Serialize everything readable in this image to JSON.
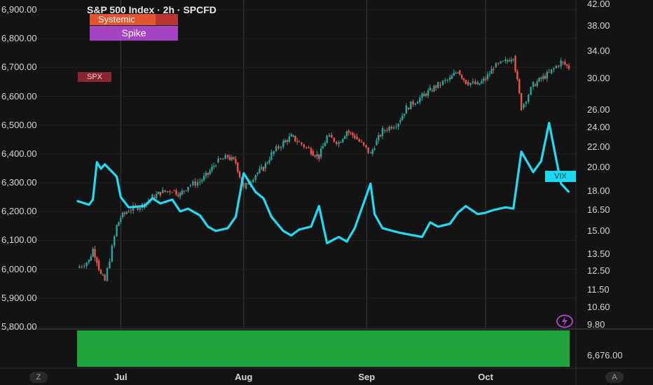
{
  "chart_data": {
    "title": "S&P 500 Index · 2h · SPCFD",
    "type": "candlestick+line",
    "x_ticks": [
      "Jul",
      "Aug",
      "Sep",
      "Oct"
    ],
    "left_axis": {
      "ticks": [
        "6,900.00",
        "6,800.00",
        "6,700.00",
        "6,600.00",
        "6,500.00",
        "6,400.00",
        "6,300.00",
        "6,200.00",
        "6,100.00",
        "6,000.00",
        "5,900.00",
        "5,800.00"
      ],
      "range": [
        5800,
        6900
      ]
    },
    "right_axis": {
      "ticks": [
        "42.00",
        "38.00",
        "34.00",
        "30.00",
        "26.00",
        "24.00",
        "22.00",
        "20.00",
        "18.00",
        "16.50",
        "15.00",
        "13.50",
        "12.50",
        "11.50",
        "10.60",
        "9.80"
      ],
      "scale": "log"
    },
    "legend": [
      "Systemic",
      "Spike"
    ],
    "series": [
      {
        "name": "SPX",
        "axis": "left",
        "color_up": "#26a69a",
        "color_down": "#ef5350",
        "points": [
          [
            "Jun 20",
            6005
          ],
          [
            "Jun 23",
            6030
          ],
          [
            "Jun 24",
            6070
          ],
          [
            "Jun 25",
            6030
          ],
          [
            "Jun 26",
            5980
          ],
          [
            "Jun 27",
            5960
          ],
          [
            "Jun 30",
            6150
          ],
          [
            "Jul 1",
            6180
          ],
          [
            "Jul 3",
            6205
          ],
          [
            "Jul 7",
            6225
          ],
          [
            "Jul 9",
            6250
          ],
          [
            "Jul 11",
            6265
          ],
          [
            "Jul 14",
            6275
          ],
          [
            "Jul 16",
            6260
          ],
          [
            "Jul 18",
            6290
          ],
          [
            "Jul 21",
            6305
          ],
          [
            "Jul 23",
            6330
          ],
          [
            "Jul 25",
            6370
          ],
          [
            "Jul 28",
            6390
          ],
          [
            "Jul 30",
            6370
          ],
          [
            "Aug 1",
            6280
          ],
          [
            "Aug 4",
            6330
          ],
          [
            "Aug 6",
            6350
          ],
          [
            "Aug 8",
            6400
          ],
          [
            "Aug 11",
            6440
          ],
          [
            "Aug 13",
            6460
          ],
          [
            "Aug 15",
            6440
          ],
          [
            "Aug 18",
            6410
          ],
          [
            "Aug 20",
            6390
          ],
          [
            "Aug 22",
            6460
          ],
          [
            "Aug 25",
            6440
          ],
          [
            "Aug 27",
            6480
          ],
          [
            "Aug 29",
            6460
          ],
          [
            "Sep 2",
            6400
          ],
          [
            "Sep 3",
            6430
          ],
          [
            "Sep 5",
            6480
          ],
          [
            "Sep 9",
            6510
          ],
          [
            "Sep 11",
            6560
          ],
          [
            "Sep 15",
            6600
          ],
          [
            "Sep 17",
            6620
          ],
          [
            "Sep 19",
            6640
          ],
          [
            "Sep 22",
            6660
          ],
          [
            "Sep 24",
            6690
          ],
          [
            "Sep 26",
            6650
          ],
          [
            "Sep 29",
            6640
          ],
          [
            "Oct 1",
            6660
          ],
          [
            "Oct 3",
            6700
          ],
          [
            "Oct 6",
            6720
          ],
          [
            "Oct 8",
            6740
          ],
          [
            "Oct 10",
            6560
          ],
          [
            "Oct 13",
            6640
          ],
          [
            "Oct 15",
            6660
          ],
          [
            "Oct 17",
            6680
          ],
          [
            "Oct 20",
            6720
          ],
          [
            "Oct 22",
            6700
          ]
        ]
      },
      {
        "name": "VIX",
        "axis": "right",
        "color": "#1fdcf5",
        "points": [
          [
            "Jun 20",
            17.2
          ],
          [
            "Jun 23",
            16.9
          ],
          [
            "Jun 24",
            17.3
          ],
          [
            "Jun 25",
            20.5
          ],
          [
            "Jun 26",
            19.9
          ],
          [
            "Jun 27",
            20.3
          ],
          [
            "Jun 30",
            19.2
          ],
          [
            "Jul 1",
            17.5
          ],
          [
            "Jul 3",
            16.7
          ],
          [
            "Jul 7",
            16.8
          ],
          [
            "Jul 9",
            17.4
          ],
          [
            "Jul 11",
            17.0
          ],
          [
            "Jul 14",
            17.3
          ],
          [
            "Jul 16",
            16.4
          ],
          [
            "Jul 18",
            16.6
          ],
          [
            "Jul 21",
            16.1
          ],
          [
            "Jul 23",
            15.3
          ],
          [
            "Jul 25",
            15.0
          ],
          [
            "Jul 28",
            15.2
          ],
          [
            "Jul 30",
            16.0
          ],
          [
            "Aug 1",
            19.5
          ],
          [
            "Aug 4",
            17.9
          ],
          [
            "Aug 6",
            17.4
          ],
          [
            "Aug 8",
            16.0
          ],
          [
            "Aug 11",
            15.0
          ],
          [
            "Aug 13",
            14.7
          ],
          [
            "Aug 15",
            15.1
          ],
          [
            "Aug 18",
            15.3
          ],
          [
            "Aug 20",
            16.8
          ],
          [
            "Aug 22",
            14.2
          ],
          [
            "Aug 25",
            14.6
          ],
          [
            "Aug 27",
            14.3
          ],
          [
            "Aug 29",
            15.2
          ],
          [
            "Sep 2",
            18.6
          ],
          [
            "Sep 3",
            16.2
          ],
          [
            "Sep 5",
            15.2
          ],
          [
            "Sep 9",
            14.9
          ],
          [
            "Sep 11",
            14.8
          ],
          [
            "Sep 15",
            14.6
          ],
          [
            "Sep 17",
            15.6
          ],
          [
            "Sep 19",
            15.3
          ],
          [
            "Sep 22",
            15.5
          ],
          [
            "Sep 24",
            16.3
          ],
          [
            "Sep 26",
            16.8
          ],
          [
            "Sep 29",
            16.2
          ],
          [
            "Oct 1",
            16.3
          ],
          [
            "Oct 3",
            16.5
          ],
          [
            "Oct 6",
            16.7
          ],
          [
            "Oct 8",
            16.6
          ],
          [
            "Oct 10",
            21.5
          ],
          [
            "Oct 13",
            19.6
          ],
          [
            "Oct 15",
            20.6
          ],
          [
            "Oct 17",
            24.5
          ],
          [
            "Oct 20",
            18.6
          ],
          [
            "Oct 22",
            17.9
          ]
        ]
      }
    ],
    "lower_pane": {
      "label": "6,676.00",
      "color": "#1fa53d"
    }
  },
  "labels": {
    "spx_tag": "SPX",
    "vix_tag": "VIX",
    "systemic": "Systemic",
    "spike": "Spike",
    "z": "Z",
    "a": "A"
  },
  "icons": {
    "bolt": "lightning-bolt-icon"
  }
}
